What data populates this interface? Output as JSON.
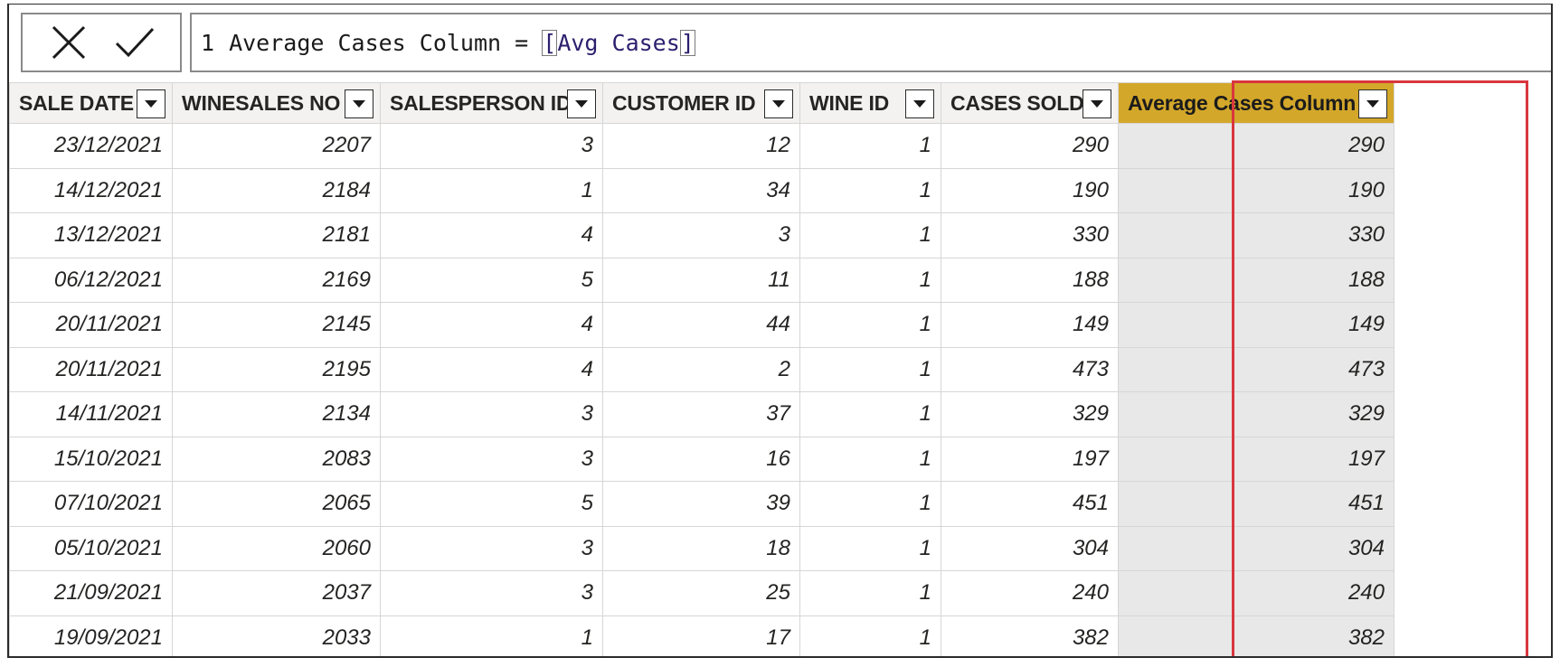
{
  "formula_bar": {
    "cancel_icon": "close-icon",
    "commit_icon": "check-icon",
    "line_number": "1",
    "formula_prefix": "Average Cases Column = ",
    "bracket_open": "[",
    "measure_name": "Avg Cases",
    "bracket_close": "]"
  },
  "table": {
    "columns": [
      {
        "label": "SALE DATE",
        "highlighted": false
      },
      {
        "label": "WINESALES NO",
        "highlighted": false
      },
      {
        "label": "SALESPERSON ID",
        "highlighted": false
      },
      {
        "label": "CUSTOMER ID",
        "highlighted": false
      },
      {
        "label": "WINE ID",
        "highlighted": false
      },
      {
        "label": "CASES SOLD",
        "highlighted": false
      },
      {
        "label": "Average Cases Column",
        "highlighted": true
      }
    ],
    "dropdown_icon": "chevron-down-icon",
    "rows": [
      [
        "23/12/2021",
        "2207",
        "3",
        "12",
        "1",
        "290",
        "290"
      ],
      [
        "14/12/2021",
        "2184",
        "1",
        "34",
        "1",
        "190",
        "190"
      ],
      [
        "13/12/2021",
        "2181",
        "4",
        "3",
        "1",
        "330",
        "330"
      ],
      [
        "06/12/2021",
        "2169",
        "5",
        "11",
        "1",
        "188",
        "188"
      ],
      [
        "20/11/2021",
        "2145",
        "4",
        "44",
        "1",
        "149",
        "149"
      ],
      [
        "20/11/2021",
        "2195",
        "4",
        "2",
        "1",
        "473",
        "473"
      ],
      [
        "14/11/2021",
        "2134",
        "3",
        "37",
        "1",
        "329",
        "329"
      ],
      [
        "15/10/2021",
        "2083",
        "3",
        "16",
        "1",
        "197",
        "197"
      ],
      [
        "07/10/2021",
        "2065",
        "5",
        "39",
        "1",
        "451",
        "451"
      ],
      [
        "05/10/2021",
        "2060",
        "3",
        "18",
        "1",
        "304",
        "304"
      ],
      [
        "21/09/2021",
        "2037",
        "3",
        "25",
        "1",
        "240",
        "240"
      ],
      [
        "19/09/2021",
        "2033",
        "1",
        "17",
        "1",
        "382",
        "382"
      ]
    ]
  },
  "colors": {
    "highlight_header": "#d3a72a",
    "highlight_cells": "#e8e8e8",
    "callout_box": "#d9363e",
    "header_bg": "#f3f2f1"
  }
}
